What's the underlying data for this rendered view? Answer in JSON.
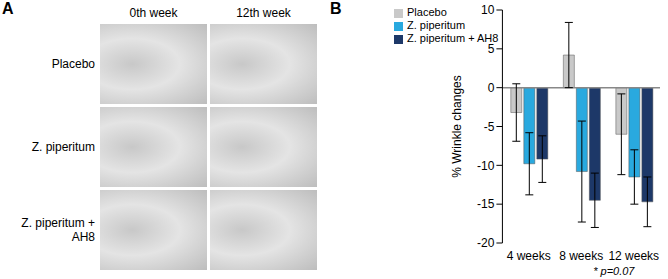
{
  "panel_a": {
    "label": "A",
    "columns": [
      "0th week",
      "12th week"
    ],
    "rows": [
      "Placebo",
      "Z. piperitum",
      "Z. piperitum + AH8"
    ]
  },
  "panel_b_label": "B",
  "chart_data": {
    "type": "bar",
    "categories": [
      "4 weeks",
      "8 weeks",
      "12 weeks"
    ],
    "y_label": "% Wrinkle changes",
    "ylim": [
      -20,
      10
    ],
    "yticks": [
      -20,
      -15,
      -10,
      -5,
      0,
      5,
      10
    ],
    "legend": "upper left",
    "series": [
      {
        "name": "Placebo",
        "color": "#c9c9c9",
        "values": [
          -3.2,
          4.2,
          -6.0
        ],
        "errors": [
          3.7,
          4.2,
          5.2
        ]
      },
      {
        "name": "Z. piperitum",
        "color": "#29a9df",
        "values": [
          -9.8,
          -10.8,
          -11.5
        ],
        "errors": [
          4.0,
          6.5,
          3.5
        ]
      },
      {
        "name": "Z. piperitum + AH8",
        "color": "#1d3868",
        "values": [
          -9.2,
          -14.5,
          -14.7
        ],
        "errors": [
          3.0,
          3.5,
          3.2
        ]
      }
    ],
    "annotations": [
      {
        "text": "* p=0.07",
        "category": "8 weeks"
      }
    ]
  }
}
